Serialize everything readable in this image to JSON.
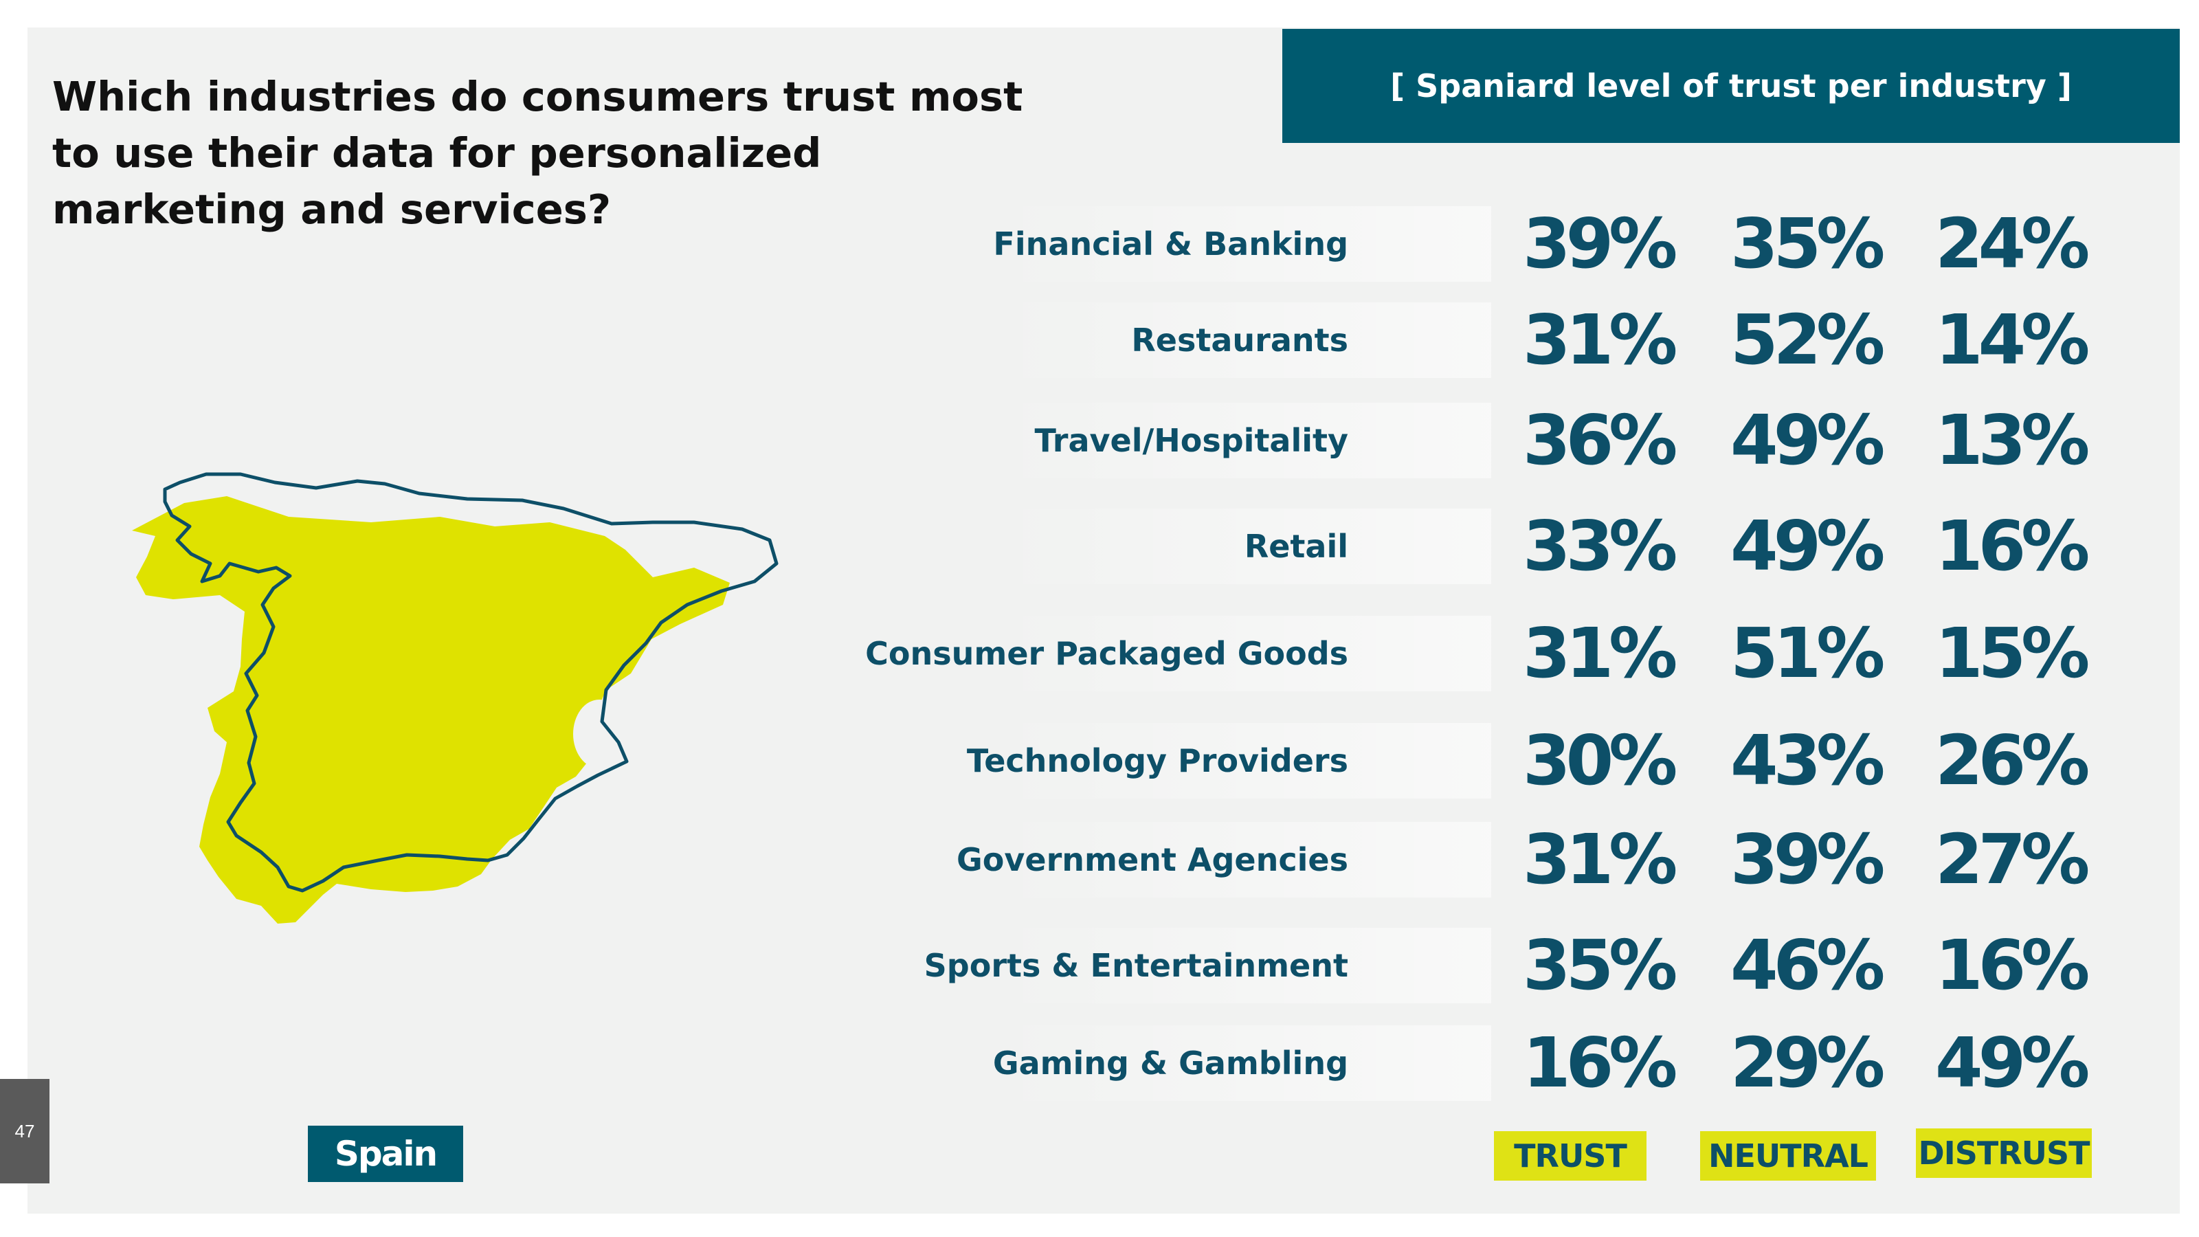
{
  "page": {
    "question": "Which industries do consumers trust most to use their data for personalized marketing and services?",
    "header": "[ Spaniard level of trust per industry ]",
    "country": "Spain",
    "page_number": "47",
    "colors": {
      "accent": "#005a6f",
      "text_teal": "#0d4f68",
      "highlight_yellow": "#dfe215",
      "map_fill": "#dfe200",
      "background": "#f1f2f1"
    },
    "map_icon": "spain-map-icon"
  },
  "chart_data": {
    "type": "table",
    "title": "[ Spaniard level of trust per industry ]",
    "columns": [
      "TRUST",
      "NEUTRAL",
      "DISTRUST"
    ],
    "rows": [
      {
        "label": "Financial & Banking",
        "values": [
          "39%",
          "35%",
          "24%"
        ]
      },
      {
        "label": "Restaurants",
        "values": [
          "31%",
          "52%",
          "14%"
        ]
      },
      {
        "label": "Travel/Hospitality",
        "values": [
          "36%",
          "49%",
          "13%"
        ]
      },
      {
        "label": "Retail",
        "values": [
          "33%",
          "49%",
          "16%"
        ]
      },
      {
        "label": "Consumer Packaged Goods",
        "values": [
          "31%",
          "51%",
          "15%"
        ]
      },
      {
        "label": "Technology Providers",
        "values": [
          "30%",
          "43%",
          "26%"
        ]
      },
      {
        "label": "Government Agencies",
        "values": [
          "31%",
          "39%",
          "27%"
        ]
      },
      {
        "label": "Sports & Entertainment",
        "values": [
          "35%",
          "46%",
          "16%"
        ]
      },
      {
        "label": "Gaming & Gambling",
        "values": [
          "16%",
          "29%",
          "49%"
        ]
      }
    ]
  }
}
